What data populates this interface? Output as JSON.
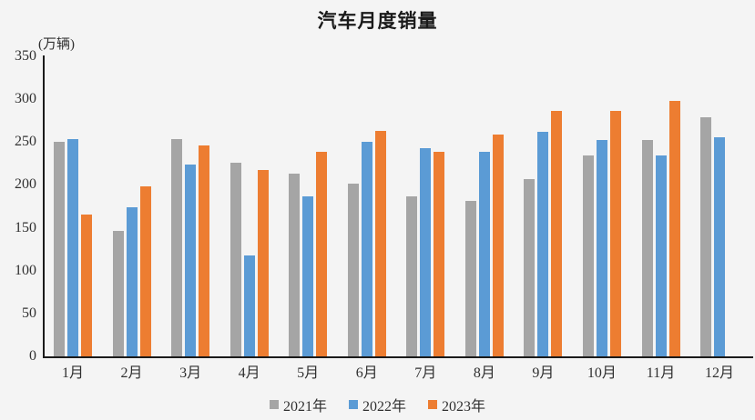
{
  "chart_data": {
    "type": "bar",
    "title": "汽车月度销量",
    "unit_label": "(万辆)",
    "xlabel": "",
    "ylabel": "万辆",
    "categories": [
      "1月",
      "2月",
      "3月",
      "4月",
      "5月",
      "6月",
      "7月",
      "8月",
      "9月",
      "10月",
      "11月",
      "12月"
    ],
    "series": [
      {
        "name": "2021年",
        "color": "#A5A5A5",
        "values": [
          250,
          146,
          253,
          226,
          213,
          202,
          187,
          181,
          207,
          234,
          252,
          279
        ]
      },
      {
        "name": "2022年",
        "color": "#5B9BD5",
        "values": [
          253,
          174,
          224,
          118,
          187,
          250,
          243,
          239,
          262,
          252,
          234,
          256
        ]
      },
      {
        "name": "2023年",
        "color": "#ED7D31",
        "values": [
          165,
          198,
          246,
          217,
          239,
          263,
          239,
          259,
          286,
          286,
          298,
          null
        ]
      }
    ],
    "ylim": [
      0,
      350
    ],
    "yticks": [
      0,
      50,
      100,
      150,
      200,
      250,
      300,
      350
    ],
    "grid": false,
    "legend_position": "bottom"
  },
  "colors": {
    "background": "#F4F4F4",
    "axis": "#1A1A1A",
    "text": "#303030"
  }
}
